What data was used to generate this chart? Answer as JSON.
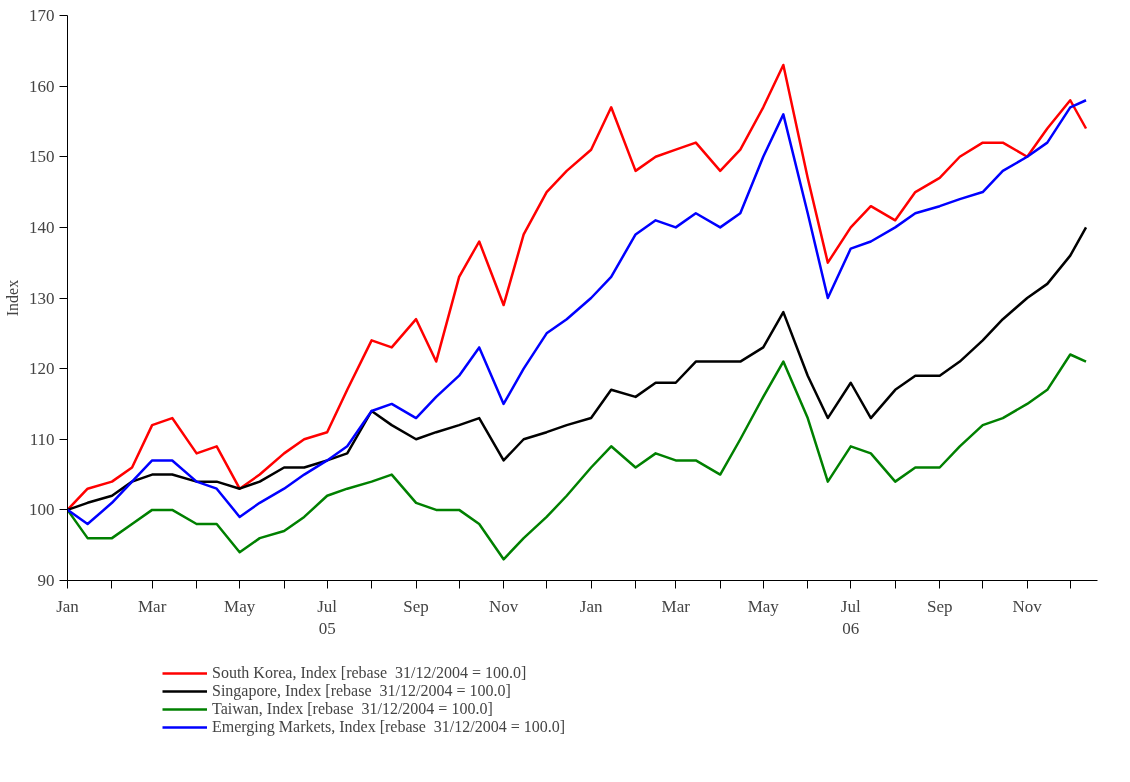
{
  "chart_data": {
    "type": "line",
    "ylabel": "Index",
    "x": [
      "2005-01-01",
      "2005-01-15",
      "2005-02-01",
      "2005-02-15",
      "2005-03-01",
      "2005-03-15",
      "2005-04-01",
      "2005-04-15",
      "2005-05-01",
      "2005-05-15",
      "2005-06-01",
      "2005-06-15",
      "2005-07-01",
      "2005-07-15",
      "2005-08-01",
      "2005-08-15",
      "2005-09-01",
      "2005-09-15",
      "2005-10-01",
      "2005-10-15",
      "2005-11-01",
      "2005-11-15",
      "2005-12-01",
      "2005-12-15",
      "2006-01-01",
      "2006-01-15",
      "2006-02-01",
      "2006-02-15",
      "2006-03-01",
      "2006-03-15",
      "2006-04-01",
      "2006-04-15",
      "2006-05-01",
      "2006-05-15",
      "2006-06-01",
      "2006-06-15",
      "2006-07-01",
      "2006-07-15",
      "2006-08-01",
      "2006-08-15",
      "2006-09-01",
      "2006-09-15",
      "2006-10-01",
      "2006-10-15",
      "2006-11-01",
      "2006-11-15",
      "2006-12-01",
      "2006-12-12"
    ],
    "series": [
      {
        "name": "South Korea, Index [rebase  31/12/2004 = 100.0]",
        "color": "#ff0000",
        "values": [
          100,
          103,
          104,
          106,
          112,
          113,
          108,
          109,
          103,
          105,
          108,
          110,
          111,
          117,
          124,
          123,
          127,
          121,
          133,
          138,
          129,
          139,
          145,
          148,
          151,
          157,
          148,
          150,
          151,
          152,
          148,
          151,
          157,
          163,
          147,
          135,
          140,
          143,
          141,
          145,
          147,
          150,
          152,
          152,
          150,
          154,
          158,
          154
        ]
      },
      {
        "name": "Singapore, Index [rebase  31/12/2004 = 100.0]",
        "color": "#000000",
        "values": [
          100,
          101,
          102,
          104,
          105,
          105,
          104,
          104,
          103,
          104,
          106,
          106,
          107,
          108,
          114,
          112,
          110,
          111,
          112,
          113,
          107,
          110,
          111,
          112,
          113,
          117,
          116,
          118,
          118,
          121,
          121,
          121,
          123,
          128,
          119,
          113,
          118,
          113,
          117,
          119,
          119,
          121,
          124,
          127,
          130,
          132,
          136,
          140
        ]
      },
      {
        "name": "Taiwan, Index [rebase  31/12/2004 = 100.0]",
        "color": "#008000",
        "values": [
          100,
          96,
          96,
          98,
          100,
          100,
          98,
          98,
          94,
          96,
          97,
          99,
          102,
          103,
          104,
          105,
          101,
          100,
          100,
          98,
          93,
          96,
          99,
          102,
          106,
          109,
          106,
          108,
          107,
          107,
          105,
          110,
          116,
          121,
          113,
          104,
          109,
          108,
          104,
          106,
          106,
          109,
          112,
          113,
          115,
          117,
          122,
          121
        ]
      },
      {
        "name": "Emerging Markets, Index [rebase  31/12/2004 = 100.0]",
        "color": "#0000ff",
        "values": [
          100,
          98,
          101,
          104,
          107,
          107,
          104,
          103,
          99,
          101,
          103,
          105,
          107,
          109,
          114,
          115,
          113,
          116,
          119,
          123,
          115,
          120,
          125,
          127,
          130,
          133,
          139,
          141,
          140,
          142,
          140,
          142,
          150,
          156,
          142,
          130,
          137,
          138,
          140,
          142,
          143,
          144,
          145,
          148,
          150,
          152,
          157,
          158
        ]
      }
    ],
    "xlim": [
      "2005-01-01",
      "2006-12-20"
    ],
    "xticks": [
      {
        "value": "2005-01-01",
        "label": "Jan"
      },
      {
        "value": "2005-02-01",
        "label": null
      },
      {
        "value": "2005-03-01",
        "label": "Mar"
      },
      {
        "value": "2005-04-01",
        "label": null
      },
      {
        "value": "2005-05-01",
        "label": "May"
      },
      {
        "value": "2005-06-01",
        "label": null
      },
      {
        "value": "2005-07-01",
        "label": "Jul\n05"
      },
      {
        "value": "2005-08-01",
        "label": null
      },
      {
        "value": "2005-09-01",
        "label": "Sep"
      },
      {
        "value": "2005-10-01",
        "label": null
      },
      {
        "value": "2005-11-01",
        "label": "Nov"
      },
      {
        "value": "2005-12-01",
        "label": null
      },
      {
        "value": "2006-01-01",
        "label": "Jan"
      },
      {
        "value": "2006-02-01",
        "label": null
      },
      {
        "value": "2006-03-01",
        "label": "Mar"
      },
      {
        "value": "2006-04-01",
        "label": null
      },
      {
        "value": "2006-05-01",
        "label": "May"
      },
      {
        "value": "2006-06-01",
        "label": null
      },
      {
        "value": "2006-07-01",
        "label": "Jul\n06"
      },
      {
        "value": "2006-08-01",
        "label": null
      },
      {
        "value": "2006-09-01",
        "label": "Sep"
      },
      {
        "value": "2006-10-01",
        "label": null
      },
      {
        "value": "2006-11-01",
        "label": "Nov"
      },
      {
        "value": "2006-12-01",
        "label": null
      }
    ],
    "ylim": [
      90,
      170
    ],
    "yticks": [
      90,
      100,
      110,
      120,
      130,
      140,
      150,
      160,
      170
    ],
    "grid": false,
    "legend": "bottom",
    "line_style": "solid",
    "marker": "none"
  }
}
